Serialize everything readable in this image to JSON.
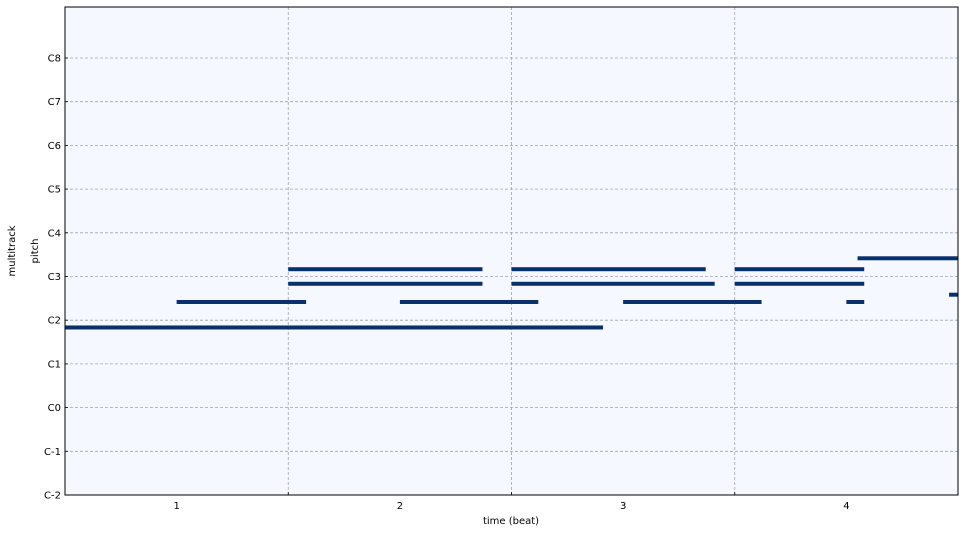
{
  "chart_data": {
    "type": "pianoroll",
    "title": "",
    "xlabel": "time (beat)",
    "ylabel": "pitch",
    "track_label": "multitrack",
    "xlim": [
      0.5,
      4.5
    ],
    "ylim": [
      -24,
      110
    ],
    "grid": true,
    "background_color": "#f5f9ff",
    "note_color": "#08306b",
    "grid_color": "#9aa5b1",
    "x_ticks": [
      {
        "value": 1,
        "label": "1"
      },
      {
        "value": 2,
        "label": "2"
      },
      {
        "value": 3,
        "label": "3"
      },
      {
        "value": 4,
        "label": "4"
      }
    ],
    "x_gridlines": [
      1.5,
      2.5,
      3.5
    ],
    "y_ticks": [
      {
        "value": -24,
        "label": "C-2"
      },
      {
        "value": -12,
        "label": "C-1"
      },
      {
        "value": 0,
        "label": "C0"
      },
      {
        "value": 12,
        "label": "C1"
      },
      {
        "value": 24,
        "label": "C2"
      },
      {
        "value": 36,
        "label": "C3"
      },
      {
        "value": 48,
        "label": "C4"
      },
      {
        "value": 60,
        "label": "C5"
      },
      {
        "value": 72,
        "label": "C6"
      },
      {
        "value": 84,
        "label": "C7"
      },
      {
        "value": 96,
        "label": "C8"
      }
    ],
    "notes": [
      {
        "pitch": 22,
        "start": 0.5,
        "end": 2.91
      },
      {
        "pitch": 29,
        "start": 1.0,
        "end": 1.58
      },
      {
        "pitch": 29,
        "start": 2.0,
        "end": 2.62
      },
      {
        "pitch": 29,
        "start": 3.0,
        "end": 3.62
      },
      {
        "pitch": 29,
        "start": 4.0,
        "end": 4.08
      },
      {
        "pitch": 34,
        "start": 1.5,
        "end": 2.37
      },
      {
        "pitch": 34,
        "start": 2.5,
        "end": 3.41
      },
      {
        "pitch": 34,
        "start": 3.5,
        "end": 4.08
      },
      {
        "pitch": 38,
        "start": 1.5,
        "end": 2.37
      },
      {
        "pitch": 38,
        "start": 2.5,
        "end": 3.37
      },
      {
        "pitch": 38,
        "start": 3.5,
        "end": 4.08
      },
      {
        "pitch": 41,
        "start": 4.05,
        "end": 4.5
      },
      {
        "pitch": 31,
        "start": 4.46,
        "end": 4.5
      }
    ]
  }
}
